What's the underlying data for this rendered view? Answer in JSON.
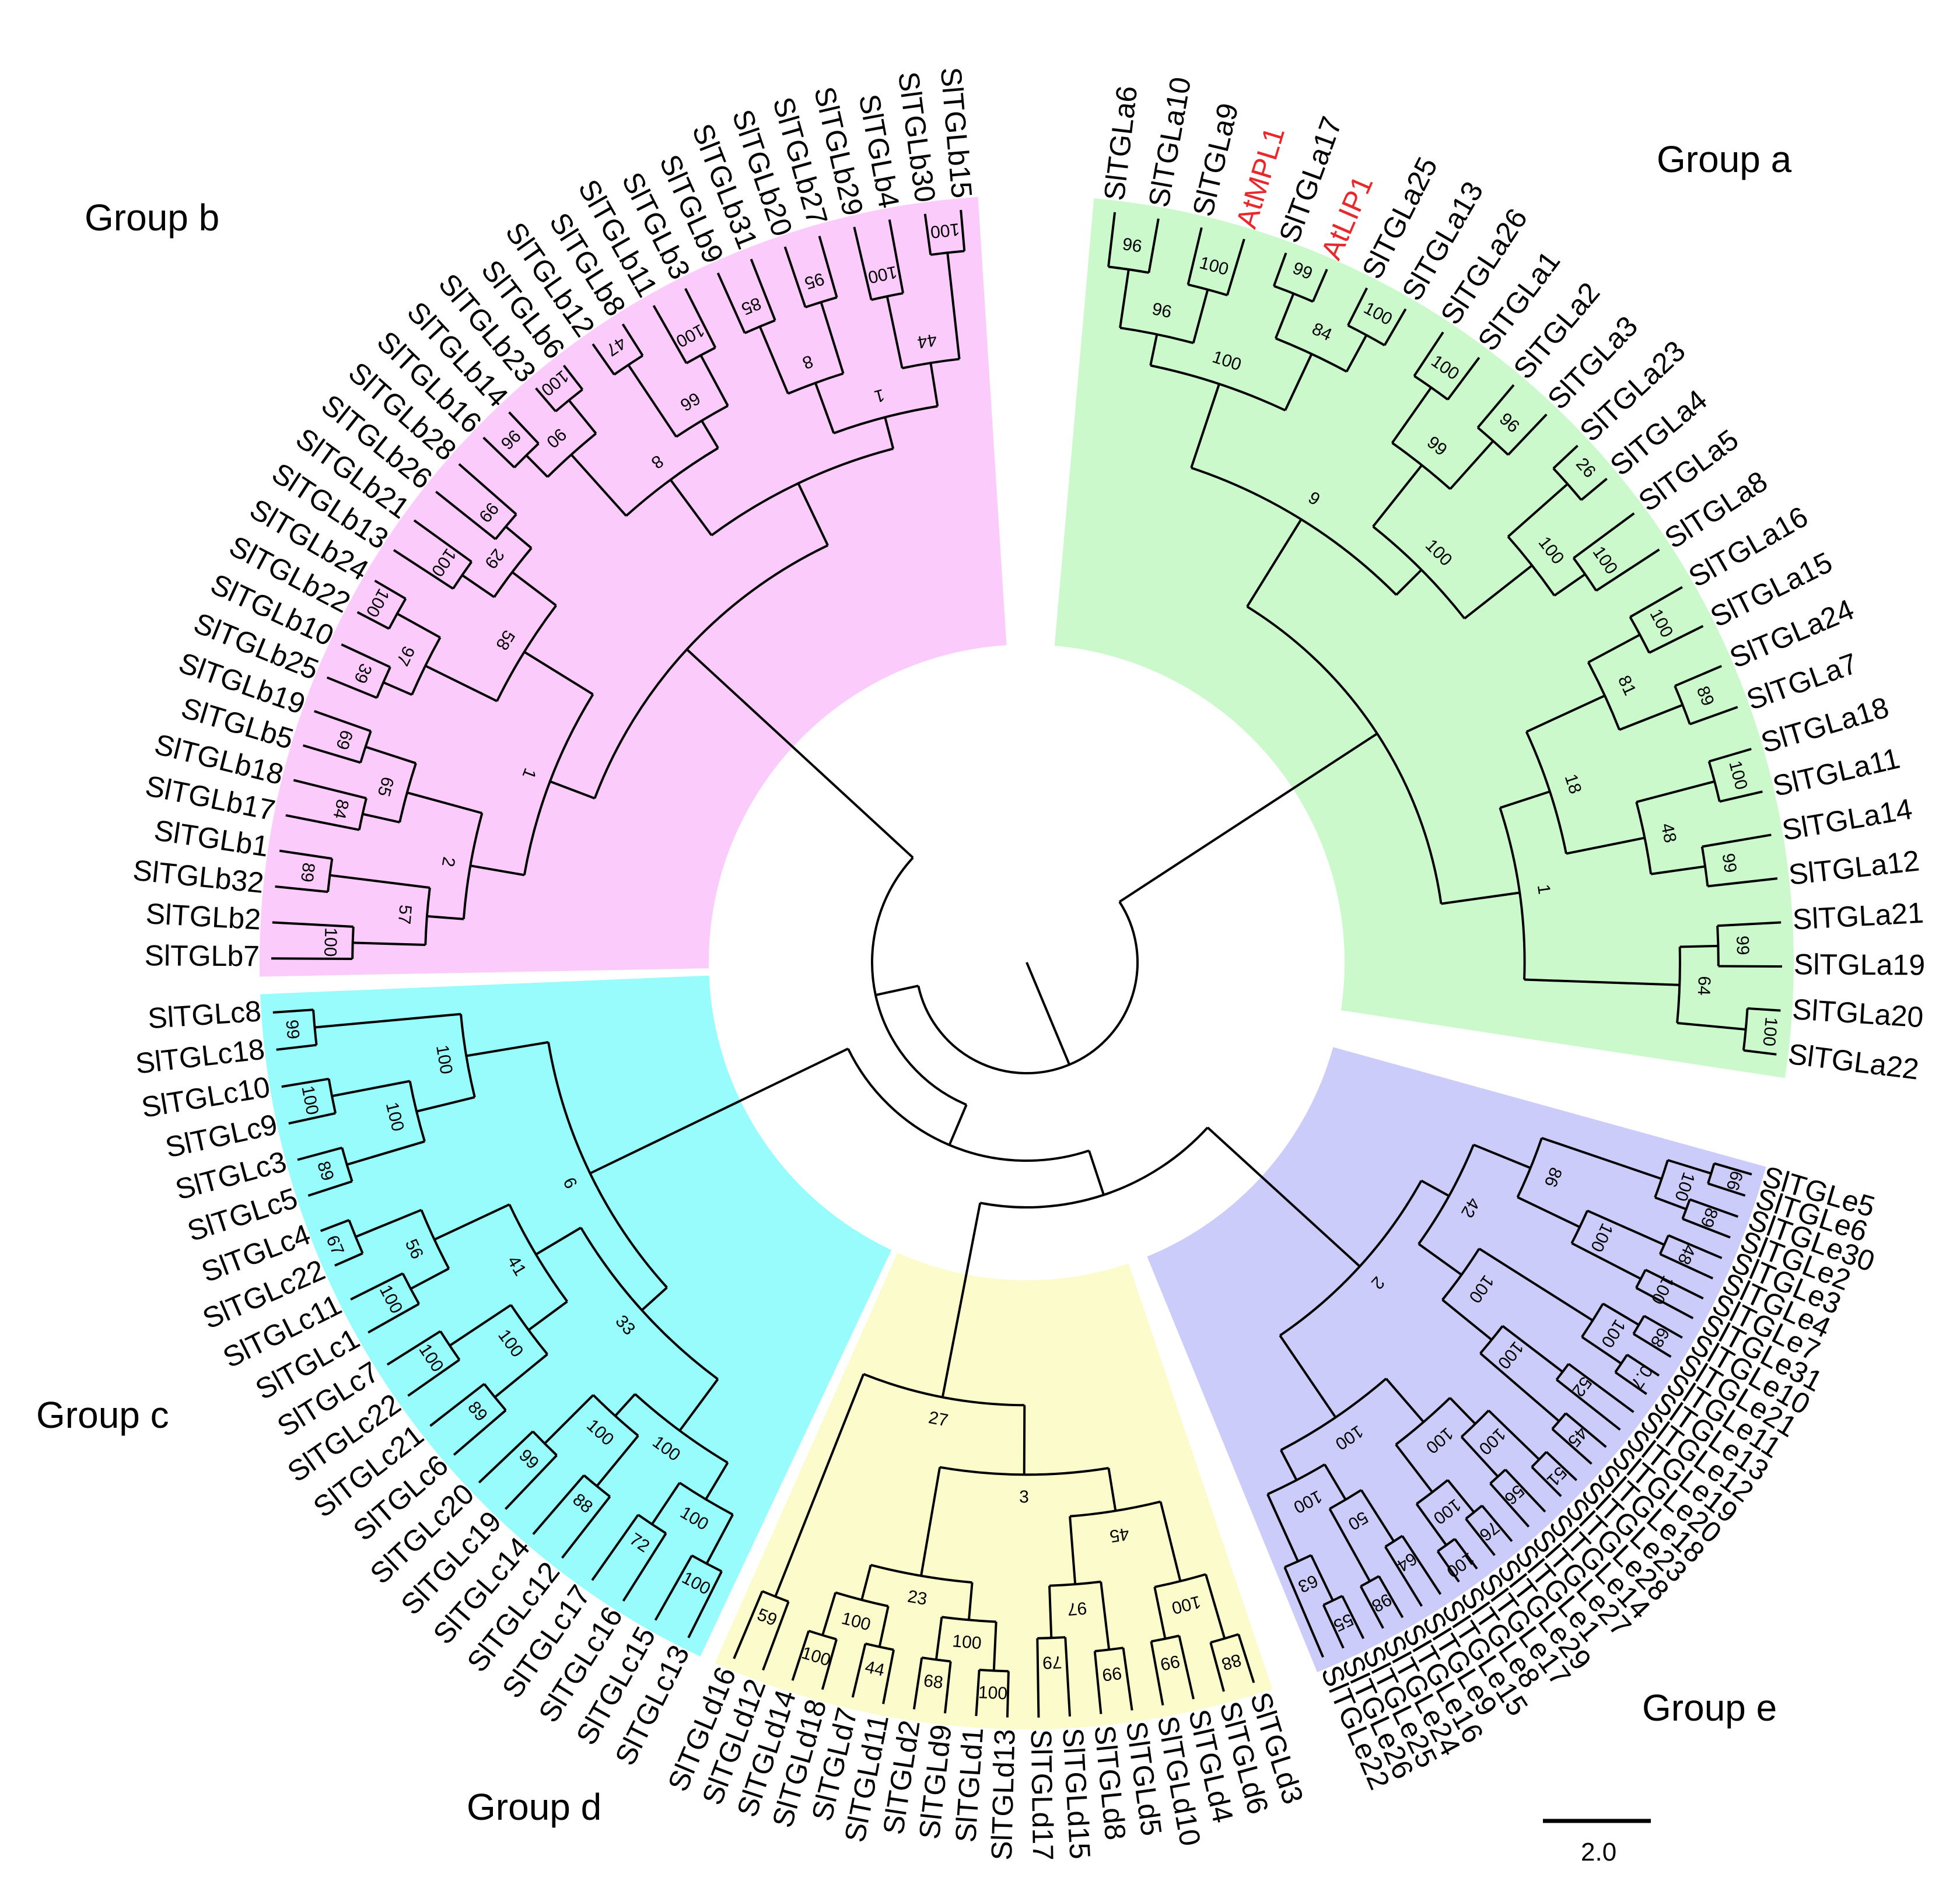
{
  "groups": [
    {
      "id": "a",
      "label": "Group a",
      "color": "#ccf9cc",
      "leaves": [
        "SlTGLa6",
        "SlTGLa10",
        "SlTGLa9",
        "AtMPL1",
        "SlTGLa17",
        "AtLIP1",
        "SlTGLa25",
        "SlTGLa13",
        "SlTGLa26",
        "SlTGLa1",
        "SlTGLa2",
        "SlTGLa3",
        "SlTGLa23",
        "SlTGLa4",
        "SlTGLa5",
        "SlTGLa8",
        "SlTGLa16",
        "SlTGLa15",
        "SlTGLa24",
        "SlTGLa7",
        "SlTGLa18",
        "SlTGLa11",
        "SlTGLa14",
        "SlTGLa12",
        "SlTGLa21",
        "SlTGLa19",
        "SlTGLa20",
        "SlTGLa22"
      ],
      "bootstrap": [
        "96",
        "100",
        "99",
        "100",
        "100",
        "96",
        "26",
        "100",
        "100",
        "89",
        "100",
        "99",
        "99",
        "100",
        "96",
        "84",
        "99",
        "100",
        "81",
        "48",
        "64",
        "100",
        "100",
        "18",
        "9",
        "1"
      ]
    },
    {
      "id": "e",
      "label": "Group e",
      "color": "#ccccfa",
      "leaves": [
        "SlTGLe5",
        "SlTGLe6",
        "SlTGLe30",
        "SlTGLe2",
        "SlTGLe3",
        "SlTGLe4",
        "SlTGLe7",
        "SlTGLe31",
        "SlTGLe10",
        "SlTGLe21",
        "SlTGLe11",
        "SlTGLe13",
        "SlTGLe12",
        "SlTGLe19",
        "SlTGLe20",
        "SlTGLe18",
        "SlTGLe23",
        "SlTGLe28",
        "SlTGLe14",
        "SlTGLe27",
        "SlTGLe1",
        "SlTGLe29",
        "SlTGLe17",
        "SlTGLe8",
        "SlTGLe15",
        "SlTGLe9",
        "SlTGLe16",
        "SlTGLe24",
        "SlTGLe25",
        "SlTGLe26",
        "SlTGLe22"
      ],
      "bootstrap": [
        "66",
        "89",
        "48",
        "100",
        "68",
        "0.7",
        "52",
        "45",
        "51",
        "56",
        "76",
        "100",
        "64",
        "98",
        "55",
        "100",
        "100",
        "100",
        "100",
        "100",
        "100",
        "50",
        "63",
        "86",
        "100",
        "100",
        "100",
        "42",
        "100",
        "2"
      ]
    },
    {
      "id": "d",
      "label": "Group d",
      "color": "#fbfbcc",
      "leaves": [
        "SlTGLd3",
        "SlTGLd6",
        "SlTGLd4",
        "SlTGLd10",
        "SlTGLd5",
        "SlTGLd8",
        "SlTGLd15",
        "SlTGLd17",
        "SlTGLd13",
        "SlTGLd1",
        "SlTGLd9",
        "SlTGLd2",
        "SlTGLd11",
        "SlTGLd7",
        "SlTGLd18",
        "SlTGLd14",
        "SlTGLd12",
        "SlTGLd16"
      ],
      "bootstrap": [
        "88",
        "99",
        "99",
        "79",
        "100",
        "68",
        "44",
        "100",
        "59",
        "100",
        "97",
        "100",
        "100",
        "45",
        "23",
        "3",
        "27",
        "1"
      ]
    },
    {
      "id": "c",
      "label": "Group c",
      "color": "#99fcfc",
      "leaves": [
        "SlTGLc13",
        "SlTGLc15",
        "SlTGLc16",
        "SlTGLc17",
        "SlTGLc12",
        "SlTGLc14",
        "SlTGLc19",
        "SlTGLc20",
        "SlTGLc6",
        "SlTGLc21",
        "SlTGLc22",
        "SlTGLc7",
        "SlTGLc1",
        "SlTGLc11",
        "SlTGLc22",
        "SlTGLc4",
        "SlTGLc5",
        "SlTGLc3",
        "SlTGLc9",
        "SlTGLc10",
        "SlTGLc18",
        "SlTGLc8"
      ],
      "bootstrap": [
        "100",
        "72",
        "88",
        "99",
        "89",
        "100",
        "100",
        "67",
        "89",
        "100",
        "99",
        "100",
        "100",
        "100",
        "56",
        "100",
        "100",
        "41",
        "100",
        "33",
        "6",
        "1"
      ]
    },
    {
      "id": "b",
      "label": "Group b",
      "color": "#fbccfb",
      "leaves": [
        "SlTGLb7",
        "SlTGLb2",
        "SlTGLb32",
        "SlTGLb1",
        "SlTGLb17",
        "SlTGLb18",
        "SlTGLb5",
        "SlTGLb19",
        "SlTGLb25",
        "SlTGLb10",
        "SlTGLb22",
        "SlTGLb24",
        "SlTGLb13",
        "SlTGLb21",
        "SlTGLb26",
        "SlTGLb28",
        "SlTGLb16",
        "SlTGLb14",
        "SlTGLb23",
        "SlTGLb6",
        "SlTGLb12",
        "SlTGLb8",
        "SlTGLb11",
        "SlTGLb3",
        "SlTGLb9",
        "SlTGLb31",
        "SlTGLb20",
        "SlTGLb27",
        "SlTGLb29",
        "SlTGLb4",
        "SlTGLb30",
        "SlTGLb15"
      ],
      "bootstrap": [
        "100",
        "89",
        "84",
        "69",
        "39",
        "100",
        "100",
        "99",
        "96",
        "100",
        "47",
        "100",
        "85",
        "95",
        "100",
        "100",
        "57",
        "65",
        "97",
        "29",
        "90",
        "66",
        "8",
        "44",
        "2",
        "58",
        "8",
        "1",
        "1"
      ]
    }
  ],
  "highlight_color": "#e8282a",
  "scale_bar": {
    "label": "2.0"
  }
}
